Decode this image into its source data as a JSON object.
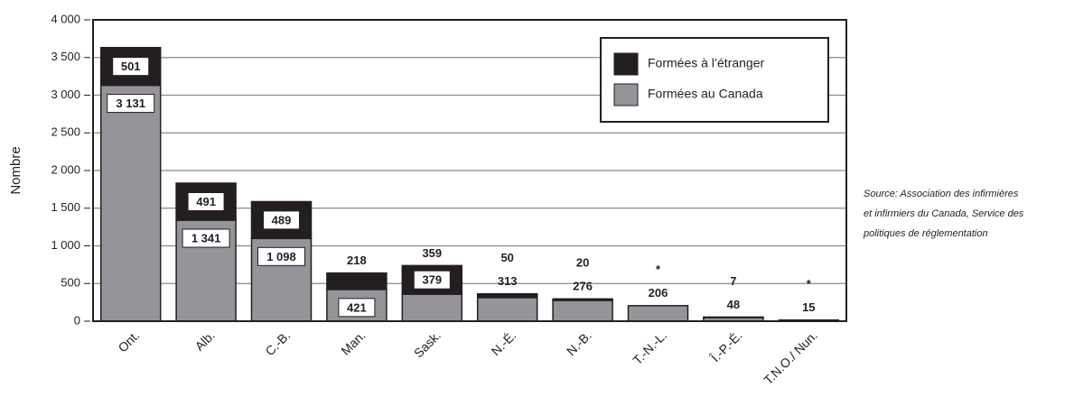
{
  "chart_data": {
    "type": "stacked-bar",
    "y_label": "Nombre",
    "categories": [
      "Ont.",
      "Alb.",
      "C.-B.",
      "Man.",
      "Sask.",
      "N.-É.",
      "N.-B.",
      "T.-N.-L.",
      "Î.-P.-É.",
      "T.N.O./ Nun."
    ],
    "series": [
      {
        "name": "Formées au Canada",
        "color": "#939598",
        "values": [
          3131,
          1341,
          1098,
          421,
          359,
          313,
          276,
          206,
          48,
          15
        ],
        "value_labels": [
          "3 131",
          "1 341",
          "1 098",
          "421",
          "359",
          "313",
          "276",
          "206",
          "48",
          "15"
        ]
      },
      {
        "name": "Formées à l’étranger",
        "color": "#231f20",
        "values": [
          501,
          491,
          489,
          218,
          379,
          50,
          20,
          null,
          7,
          null
        ],
        "value_labels": [
          "501",
          "491",
          "489",
          "218",
          "379",
          "50",
          "20",
          "*",
          "7",
          "*"
        ]
      }
    ],
    "ylim": [
      0,
      4000
    ],
    "yticks": [
      0,
      500,
      {
        "value": 1000,
        "label": "1 000"
      },
      {
        "value": 1500,
        "label": "1 500"
      },
      {
        "value": 2000,
        "label": "2 000"
      },
      {
        "value": 2500,
        "label": "2 500"
      },
      {
        "value": 3000,
        "label": "3 000"
      },
      {
        "value": 3500,
        "label": "3 500"
      },
      {
        "value": 4000,
        "label": "4 000"
      }
    ],
    "grid": true,
    "legend": "upper right",
    "source": [
      "Source: Association des infirmières",
      "et infirmiers du Canada, Service des",
      "politiques de réglementation"
    ]
  }
}
